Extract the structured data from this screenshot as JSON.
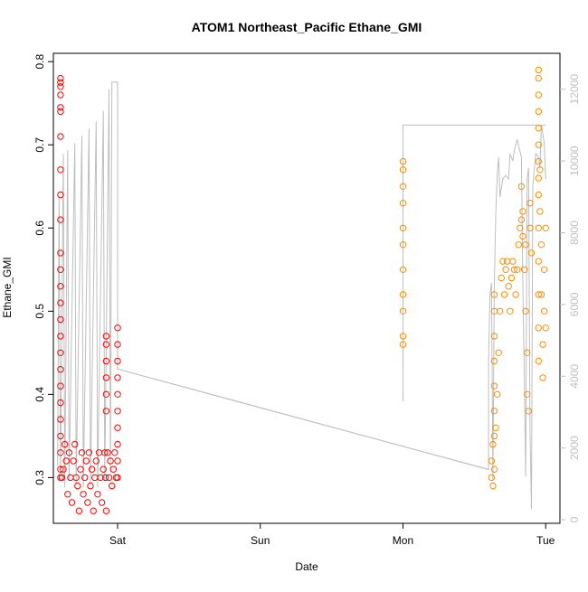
{
  "chart_data": {
    "type": "scatter",
    "title": "ATOM1 Northeast_Pacific Ethane_GMI",
    "xlabel": "Date",
    "ylabel": "Ethane_GMI",
    "x_ticks": [
      "Sat",
      "Sun",
      "Mon",
      "Tue"
    ],
    "y_ticks": [
      0.3,
      0.4,
      0.5,
      0.6,
      0.7,
      0.8
    ],
    "y2_ticks": [
      0,
      2000,
      4000,
      6000,
      8000,
      10000,
      12000
    ],
    "xlim_days": [
      -0.45,
      3.1
    ],
    "ylim": [
      0.245,
      0.81
    ],
    "y2lim": [
      -100,
      13000
    ],
    "colors": {
      "early": "#ff0000",
      "late": "#ff8c00",
      "altitude": "#bebebe",
      "axis": "#000000"
    },
    "series": [
      {
        "color": "early",
        "points": [
          [
            -0.4,
            0.78
          ],
          [
            -0.4,
            0.775
          ],
          [
            -0.4,
            0.77
          ],
          [
            -0.4,
            0.76
          ],
          [
            -0.4,
            0.745
          ],
          [
            -0.4,
            0.74
          ],
          [
            -0.4,
            0.71
          ],
          [
            -0.4,
            0.67
          ],
          [
            -0.4,
            0.64
          ],
          [
            -0.4,
            0.61
          ],
          [
            -0.4,
            0.57
          ],
          [
            -0.4,
            0.55
          ],
          [
            -0.4,
            0.53
          ],
          [
            -0.4,
            0.51
          ],
          [
            -0.4,
            0.49
          ],
          [
            -0.4,
            0.47
          ],
          [
            -0.4,
            0.45
          ],
          [
            -0.4,
            0.43
          ],
          [
            -0.4,
            0.41
          ],
          [
            -0.4,
            0.39
          ],
          [
            -0.4,
            0.37
          ],
          [
            -0.4,
            0.35
          ],
          [
            -0.4,
            0.33
          ],
          [
            -0.4,
            0.31
          ],
          [
            -0.4,
            0.3
          ],
          [
            -0.39,
            0.3
          ],
          [
            -0.38,
            0.31
          ],
          [
            -0.37,
            0.34
          ],
          [
            -0.36,
            0.32
          ],
          [
            -0.35,
            0.28
          ],
          [
            -0.34,
            0.33
          ],
          [
            -0.33,
            0.3
          ],
          [
            -0.32,
            0.27
          ],
          [
            -0.31,
            0.32
          ],
          [
            -0.3,
            0.34
          ],
          [
            -0.29,
            0.3
          ],
          [
            -0.28,
            0.29
          ],
          [
            -0.27,
            0.26
          ],
          [
            -0.26,
            0.31
          ],
          [
            -0.25,
            0.33
          ],
          [
            -0.24,
            0.28
          ],
          [
            -0.23,
            0.3
          ],
          [
            -0.22,
            0.32
          ],
          [
            -0.21,
            0.27
          ],
          [
            -0.2,
            0.33
          ],
          [
            -0.19,
            0.29
          ],
          [
            -0.18,
            0.31
          ],
          [
            -0.17,
            0.26
          ],
          [
            -0.16,
            0.3
          ],
          [
            -0.15,
            0.32
          ],
          [
            -0.14,
            0.28
          ],
          [
            -0.13,
            0.33
          ],
          [
            -0.12,
            0.3
          ],
          [
            -0.11,
            0.27
          ],
          [
            -0.1,
            0.31
          ],
          [
            -0.09,
            0.33
          ],
          [
            -0.085,
            0.3
          ],
          [
            -0.08,
            0.26
          ],
          [
            -0.08,
            0.38
          ],
          [
            -0.08,
            0.4
          ],
          [
            -0.08,
            0.42
          ],
          [
            -0.08,
            0.44
          ],
          [
            -0.08,
            0.46
          ],
          [
            -0.08,
            0.47
          ],
          [
            -0.07,
            0.33
          ],
          [
            -0.06,
            0.3
          ],
          [
            -0.05,
            0.32
          ],
          [
            -0.04,
            0.29
          ],
          [
            -0.03,
            0.31
          ],
          [
            -0.02,
            0.33
          ],
          [
            -0.01,
            0.3
          ],
          [
            0.0,
            0.48
          ],
          [
            0.0,
            0.46
          ],
          [
            0.0,
            0.44
          ],
          [
            0.0,
            0.42
          ],
          [
            0.0,
            0.4
          ],
          [
            0.0,
            0.38
          ],
          [
            0.0,
            0.36
          ],
          [
            0.0,
            0.34
          ],
          [
            0.0,
            0.32
          ],
          [
            0.0,
            0.3
          ]
        ]
      },
      {
        "color": "late",
        "points": [
          [
            2.0,
            0.68
          ],
          [
            2.0,
            0.67
          ],
          [
            2.0,
            0.65
          ],
          [
            2.0,
            0.63
          ],
          [
            2.0,
            0.6
          ],
          [
            2.0,
            0.58
          ],
          [
            2.0,
            0.55
          ],
          [
            2.0,
            0.52
          ],
          [
            2.0,
            0.5
          ],
          [
            2.0,
            0.47
          ],
          [
            2.0,
            0.46
          ],
          [
            2.62,
            0.3
          ],
          [
            2.62,
            0.32
          ],
          [
            2.63,
            0.29
          ],
          [
            2.63,
            0.34
          ],
          [
            2.64,
            0.31
          ],
          [
            2.64,
            0.52
          ],
          [
            2.64,
            0.5
          ],
          [
            2.64,
            0.47
          ],
          [
            2.64,
            0.44
          ],
          [
            2.64,
            0.41
          ],
          [
            2.64,
            0.38
          ],
          [
            2.64,
            0.35
          ],
          [
            2.65,
            0.36
          ],
          [
            2.66,
            0.4
          ],
          [
            2.67,
            0.45
          ],
          [
            2.68,
            0.5
          ],
          [
            2.69,
            0.54
          ],
          [
            2.7,
            0.56
          ],
          [
            2.71,
            0.52
          ],
          [
            2.72,
            0.55
          ],
          [
            2.73,
            0.56
          ],
          [
            2.74,
            0.53
          ],
          [
            2.75,
            0.5
          ],
          [
            2.76,
            0.54
          ],
          [
            2.77,
            0.56
          ],
          [
            2.78,
            0.55
          ],
          [
            2.79,
            0.52
          ],
          [
            2.8,
            0.55
          ],
          [
            2.81,
            0.58
          ],
          [
            2.82,
            0.6
          ],
          [
            2.83,
            0.61
          ],
          [
            2.83,
            0.65
          ],
          [
            2.84,
            0.59
          ],
          [
            2.84,
            0.62
          ],
          [
            2.85,
            0.55
          ],
          [
            2.86,
            0.58
          ],
          [
            2.86,
            0.5
          ],
          [
            2.87,
            0.45
          ],
          [
            2.87,
            0.4
          ],
          [
            2.88,
            0.38
          ],
          [
            2.89,
            0.6
          ],
          [
            2.89,
            0.63
          ],
          [
            2.9,
            0.57
          ],
          [
            2.95,
            0.79
          ],
          [
            2.95,
            0.78
          ],
          [
            2.95,
            0.76
          ],
          [
            2.95,
            0.74
          ],
          [
            2.95,
            0.72
          ],
          [
            2.95,
            0.7
          ],
          [
            2.95,
            0.68
          ],
          [
            2.95,
            0.66
          ],
          [
            2.95,
            0.64
          ],
          [
            2.95,
            0.6
          ],
          [
            2.95,
            0.56
          ],
          [
            2.95,
            0.52
          ],
          [
            2.95,
            0.48
          ],
          [
            2.95,
            0.44
          ],
          [
            2.96,
            0.67
          ],
          [
            2.96,
            0.62
          ],
          [
            2.97,
            0.58
          ],
          [
            2.97,
            0.52
          ],
          [
            2.98,
            0.46
          ],
          [
            2.98,
            0.42
          ],
          [
            2.99,
            0.55
          ],
          [
            2.99,
            0.5
          ],
          [
            3.0,
            0.6
          ],
          [
            3.0,
            0.48
          ]
        ]
      }
    ],
    "altitude": [
      [
        -0.42,
        1500
      ],
      [
        -0.41,
        9000
      ],
      [
        -0.4,
        1200
      ],
      [
        -0.38,
        10200
      ],
      [
        -0.37,
        900
      ],
      [
        -0.35,
        10300
      ],
      [
        -0.34,
        1100
      ],
      [
        -0.3,
        10500
      ],
      [
        -0.29,
        1000
      ],
      [
        -0.25,
        10700
      ],
      [
        -0.24,
        900
      ],
      [
        -0.2,
        10900
      ],
      [
        -0.19,
        1000
      ],
      [
        -0.15,
        11100
      ],
      [
        -0.14,
        900
      ],
      [
        -0.1,
        11400
      ],
      [
        -0.09,
        1100
      ],
      [
        -0.06,
        12000
      ],
      [
        -0.05,
        1300
      ],
      [
        -0.04,
        12200
      ],
      [
        0.0,
        12200
      ],
      [
        0.0,
        4200
      ],
      [
        2.6,
        1400
      ],
      [
        2.6,
        4500
      ],
      [
        2.61,
        6300
      ],
      [
        2.62,
        6600
      ],
      [
        2.63,
        1100
      ],
      [
        2.64,
        6500
      ],
      [
        2.65,
        8500
      ],
      [
        2.66,
        9600
      ],
      [
        2.67,
        10100
      ],
      [
        2.68,
        9000
      ],
      [
        2.7,
        9500
      ],
      [
        2.72,
        9600
      ],
      [
        2.74,
        9500
      ],
      [
        2.75,
        10200
      ],
      [
        2.77,
        10000
      ],
      [
        2.78,
        10300
      ],
      [
        2.8,
        10600
      ],
      [
        2.83,
        10100
      ],
      [
        2.84,
        6500
      ],
      [
        2.85,
        4000
      ],
      [
        2.86,
        1200
      ],
      [
        2.87,
        9500
      ],
      [
        2.88,
        9800
      ],
      [
        2.89,
        2500
      ],
      [
        2.9,
        300
      ],
      [
        2.91,
        9300
      ],
      [
        2.93,
        10200
      ],
      [
        2.95,
        10100
      ],
      [
        2.96,
        9800
      ],
      [
        2.97,
        11000
      ],
      [
        2.99,
        10500
      ],
      [
        3.0,
        9500
      ]
    ],
    "altitude_extra": [
      [
        2.0,
        3300
      ],
      [
        2.0,
        11000
      ],
      [
        3.0,
        11000
      ]
    ]
  }
}
